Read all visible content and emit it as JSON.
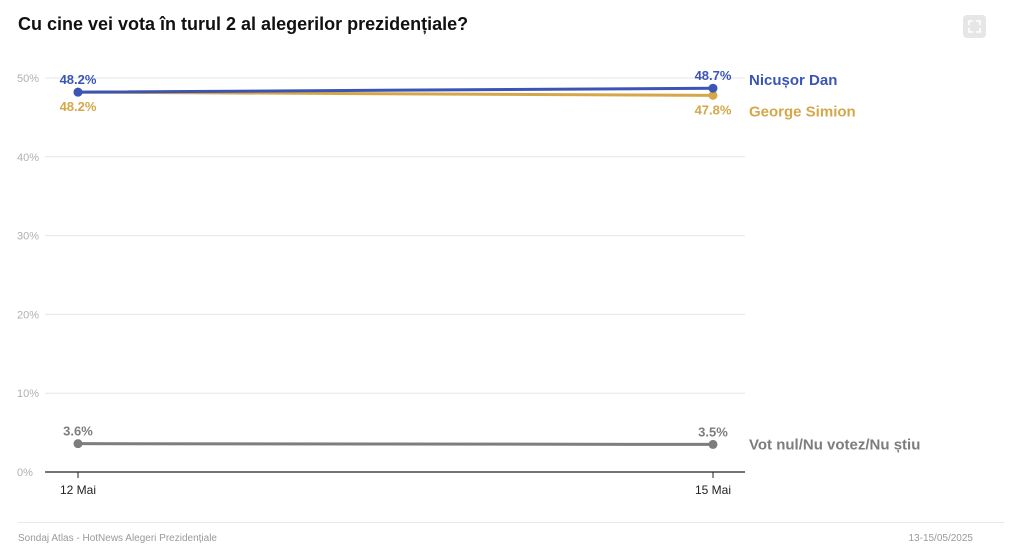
{
  "title": "Cu cine vei vota în turul 2 al alegerilor prezidențiale?",
  "expand_icon": "expand-fullscreen-icon",
  "footer": {
    "source": "Sondaj Atlas - HotNews Alegeri Prezidențiale",
    "dates": "13-15/05/2025"
  },
  "chart_data": {
    "type": "line",
    "title": "Cu cine vei vota în turul 2 al alegerilor prezidențiale?",
    "xlabel": "",
    "ylabel": "",
    "x": [
      "12 Mai",
      "15 Mai"
    ],
    "ylim": [
      0,
      50
    ],
    "yticks": [
      0,
      10,
      20,
      30,
      40,
      50
    ],
    "ytick_labels": [
      "0%",
      "10%",
      "20%",
      "30%",
      "40%",
      "50%"
    ],
    "grid": true,
    "legend": "direct labels right of line ends",
    "series": [
      {
        "name": "Nicușor Dan",
        "values": [
          48.2,
          48.7
        ],
        "labels": [
          "48.2%",
          "48.7%"
        ],
        "color": "#3b55b7"
      },
      {
        "name": "George Simion",
        "values": [
          48.2,
          47.8
        ],
        "labels": [
          "48.2%",
          "47.8%"
        ],
        "color": "#d5a74a"
      },
      {
        "name": "Vot nul/Nu votez/Nu știu",
        "values": [
          3.6,
          3.5
        ],
        "labels": [
          "3.6%",
          "3.5%"
        ],
        "color": "#7d7d7d"
      }
    ]
  }
}
